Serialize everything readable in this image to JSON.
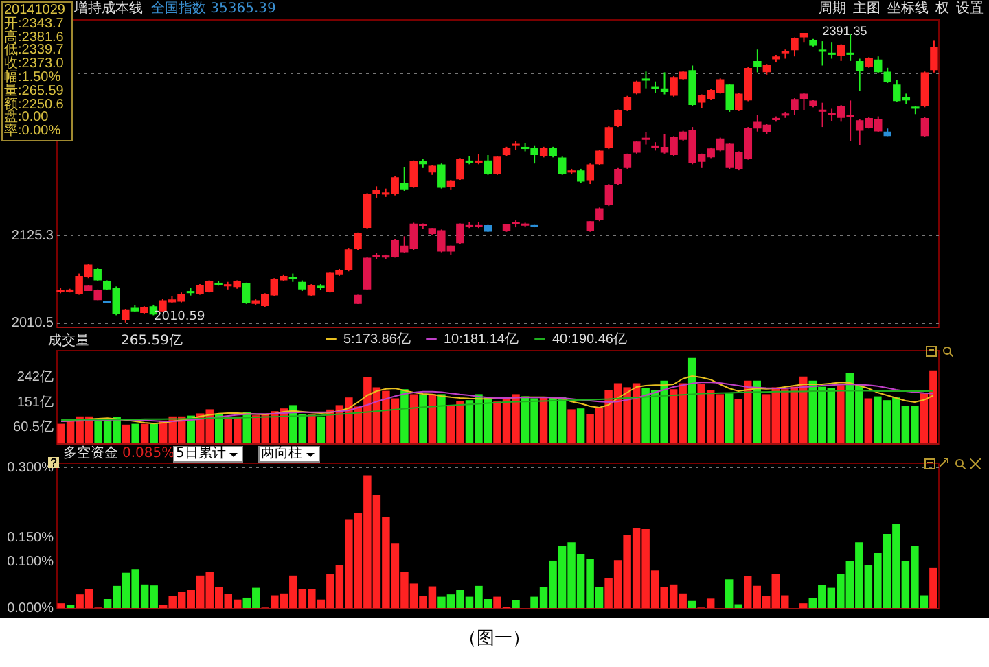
{
  "chart_data": [
    {
      "type": "candlestick",
      "title": "增持成本线",
      "annotations": [
        "全国指数 35365.39",
        "20141029",
        "开:2343.7",
        "高:2381.6",
        "低:2339.7",
        "收:2373.0",
        "幅:1.50%",
        "量:265.59",
        "额:2250.6",
        "盘:0.00",
        "率:0.00%",
        "周期",
        "主图",
        "坐标线",
        "权",
        "设置",
        {
          "text": "2391.35",
          "y": 2391.35
        },
        "2010.59"
      ],
      "categories": [
        null,
        null,
        null,
        null,
        null,
        null,
        null,
        null,
        null,
        null,
        null,
        null,
        null,
        null,
        null,
        null,
        null,
        null,
        null,
        null,
        null,
        null,
        null,
        null,
        null,
        null,
        null,
        null,
        null,
        null,
        null,
        null,
        null,
        null,
        null,
        null,
        null,
        null,
        null,
        null,
        null,
        null,
        null,
        null,
        null,
        null,
        null,
        null,
        null,
        null,
        null,
        null,
        null,
        null,
        null,
        null,
        null,
        null,
        null,
        null,
        null,
        null,
        null,
        null,
        null,
        null,
        null,
        null,
        null,
        null,
        null,
        null,
        null,
        null,
        null,
        null,
        null,
        null,
        null,
        null,
        null,
        null,
        null,
        null,
        null,
        null,
        null,
        null,
        null,
        null,
        null,
        null,
        null,
        null,
        null
      ],
      "series": [
        {
          "ohlc": [
            [
              2052,
              2056,
              2049,
              2053
            ],
            [
              2052,
              2055,
              2050,
              2053
            ],
            [
              2049,
              2075,
              2047,
              2071
            ],
            [
              2071,
              2088,
              2069,
              2086
            ],
            [
              2080,
              2082,
              2065,
              2067
            ],
            [
              2064,
              2066,
              2053,
              2055
            ],
            [
              2055,
              2058,
              2020,
              2023
            ],
            [
              2014,
              2028,
              2010.59,
              2026
            ],
            [
              2029,
              2033,
              2024,
              2026
            ],
            [
              2024,
              2032,
              2022,
              2030
            ],
            [
              2031,
              2034,
              2020,
              2022
            ],
            [
              2026,
              2042,
              2024,
              2039
            ],
            [
              2038,
              2045,
              2036,
              2040
            ],
            [
              2039,
              2050,
              2037,
              2047
            ],
            [
              2051,
              2056,
              2046,
              2050
            ],
            [
              2049,
              2061,
              2047,
              2059
            ],
            [
              2052,
              2066,
              2050,
              2064
            ],
            [
              2062,
              2065,
              2059,
              2061
            ],
            [
              2059,
              2064,
              2054,
              2060
            ],
            [
              2058,
              2066,
              2055,
              2064
            ],
            [
              2061,
              2063,
              2035,
              2037
            ],
            [
              2036,
              2041,
              2034,
              2039
            ],
            [
              2033,
              2049,
              2031,
              2047
            ],
            [
              2047,
              2069,
              2045,
              2067
            ],
            [
              2067,
              2073,
              2065,
              2071
            ],
            [
              2070,
              2075,
              2064,
              2069
            ],
            [
              2063,
              2066,
              2052,
              2055
            ],
            [
              2047,
              2061,
              2045,
              2059
            ],
            [
              2058,
              2061,
              2053,
              2057
            ],
            [
              2052,
              2077,
              2050,
              2075
            ],
            [
              2074,
              2081,
              2072,
              2079
            ],
            [
              2080,
              2108,
              2078,
              2106
            ],
            [
              2108,
              2129,
              2106,
              2127
            ],
            [
              2136,
              2181,
              2134,
              2179
            ],
            [
              2181,
              2190,
              2175,
              2184
            ],
            [
              2180,
              2187,
              2176,
              2181
            ],
            [
              2181,
              2203,
              2178,
              2201
            ],
            [
              2194,
              2215,
              2184,
              2186
            ],
            [
              2190,
              2224,
              2188,
              2222
            ],
            [
              2222,
              2226,
              2214,
              2220
            ],
            [
              2209,
              2218,
              2205,
              2216
            ],
            [
              2218,
              2220,
              2187,
              2189
            ],
            [
              2190,
              2198,
              2185,
              2196
            ],
            [
              2200,
              2227,
              2198,
              2225
            ],
            [
              2223,
              2230,
              2219,
              2222
            ],
            [
              2222,
              2232,
              2219,
              2223
            ],
            [
              2223,
              2231,
              2205,
              2207
            ],
            [
              2207,
              2230,
              2205,
              2228
            ],
            [
              2232,
              2242,
              2230,
              2240
            ],
            [
              2244,
              2250,
              2238,
              2245
            ],
            [
              2241,
              2247,
              2236,
              2240
            ],
            [
              2240,
              2243,
              2220,
              2232
            ],
            [
              2230,
              2242,
              2228,
              2240
            ],
            [
              2240,
              2242,
              2228,
              2230
            ],
            [
              2227,
              2229,
              2205,
              2207
            ],
            [
              2209,
              2213,
              2206,
              2210
            ],
            [
              2210,
              2213,
              2194,
              2197
            ],
            [
              2198,
              2220,
              2193,
              2218
            ],
            [
              2220,
              2238,
              2218,
              2236
            ],
            [
              2241,
              2269,
              2239,
              2267
            ],
            [
              2270,
              2291,
              2268,
              2289
            ],
            [
              2291,
              2309,
              2289,
              2307
            ],
            [
              2313,
              2329,
              2311,
              2327
            ],
            [
              2331,
              2341,
              2319,
              2330
            ],
            [
              2320,
              2328,
              2313,
              2319
            ],
            [
              2318,
              2340,
              2311,
              2315
            ],
            [
              2310,
              2335,
              2308,
              2333
            ],
            [
              2332,
              2342,
              2330,
              2340
            ],
            [
              2342,
              2349,
              2296,
              2298
            ],
            [
              2301,
              2311,
              2293,
              2309
            ],
            [
              2306,
              2318,
              2304,
              2316
            ],
            [
              2314,
              2332,
              2312,
              2330
            ],
            [
              2323,
              2325,
              2288,
              2291
            ],
            [
              2291,
              2313,
              2289,
              2311
            ],
            [
              2304,
              2347,
              2302,
              2345
            ],
            [
              2354,
              2370,
              2340,
              2348
            ],
            [
              2341,
              2351,
              2337,
              2349
            ],
            [
              2358,
              2363,
              2353,
              2360
            ],
            [
              2366,
              2370,
              2358,
              2367
            ],
            [
              2370,
              2386,
              2361,
              2384
            ],
            [
              2387,
              2391.35,
              2380,
              2391
            ],
            [
              2382,
              2384,
              2374,
              2376
            ],
            [
              2369,
              2381,
              2349,
              2368
            ],
            [
              2365,
              2380,
              2358,
              2364
            ],
            [
              2362,
              2377,
              2355,
              2375
            ],
            [
              2365,
              2390,
              2355,
              2364
            ],
            [
              2354,
              2358,
              2316,
              2343
            ],
            [
              2348,
              2360,
              2346,
              2358
            ],
            [
              2356,
              2361,
              2339,
              2341
            ],
            [
              2340,
              2346,
              2326,
              2328
            ],
            [
              2323,
              2330,
              2301,
              2303
            ],
            [
              2306,
              2312,
              2298,
              2304
            ],
            [
              2294,
              2296,
              2285,
              2293
            ],
            [
              2296,
              2341,
              2294,
              2339
            ],
            [
              2343.7,
              2381.6,
              2339.7,
              2373.0
            ]
          ],
          "colors": [
            "#ff2222",
            "#ff2222",
            "#ff2222",
            "#ff2222",
            "#22ee22",
            "#22ee22",
            "#22ee22",
            "#ff2222",
            "#22ee22",
            "#ff2222",
            "#22ee22",
            "#ff2222",
            "#ff2222",
            "#ff2222",
            "#22ee22",
            "#ff2222",
            "#ff2222",
            "#22ee22",
            "#ff2222",
            "#ff2222",
            "#22ee22",
            "#ff2222",
            "#ff2222",
            "#ff2222",
            "#ff2222",
            "#22ee22",
            "#22ee22",
            "#ff2222",
            "#22ee22",
            "#ff2222",
            "#ff2222",
            "#ff2222",
            "#ff2222",
            "#ff2222",
            "#ff2222",
            "#ff2222",
            "#ff2222",
            "#22ee22",
            "#ff2222",
            "#22ee22",
            "#ff2222",
            "#22ee22",
            "#ff2222",
            "#ff2222",
            "#22ee22",
            "#ff2222",
            "#22ee22",
            "#ff2222",
            "#ff2222",
            "#ff2222",
            "#22ee22",
            "#22ee22",
            "#ff2222",
            "#22ee22",
            "#22ee22",
            "#ff2222",
            "#22ee22",
            "#ff2222",
            "#ff2222",
            "#ff2222",
            "#ff2222",
            "#ff2222",
            "#ff2222",
            "#22ee22",
            "#22ee22",
            "#22ee22",
            "#ff2222",
            "#ff2222",
            "#22ee22",
            "#ff2222",
            "#ff2222",
            "#ff2222",
            "#22ee22",
            "#ff2222",
            "#ff2222",
            "#22ee22",
            "#ff2222",
            "#ff2222",
            "#ff2222",
            "#ff2222",
            "#ff2222",
            "#22ee22",
            "#22ee22",
            "#22ee22",
            "#ff2222",
            "#22ee22",
            "#22ee22",
            "#ff2222",
            "#22ee22",
            "#22ee22",
            "#22ee22",
            "#22ee22",
            "#22ee22",
            "#ff2222",
            "#ff2222"
          ]
        },
        {
          "ohlc": [
            null,
            null,
            null,
            [
              2053,
              2060,
              2052,
              2058
            ],
            [
              2041,
              2054,
              2040,
              2053
            ],
            [
              2038,
              2039,
              2036,
              2037
            ],
            null,
            null,
            null,
            null,
            null,
            null,
            null,
            null,
            null,
            null,
            null,
            null,
            null,
            null,
            null,
            null,
            null,
            null,
            null,
            null,
            null,
            null,
            null,
            null,
            null,
            null,
            [
              2036,
              2047,
              2035,
              2046
            ],
            [
              2055,
              2097,
              2053,
              2095
            ],
            [
              2098,
              2102,
              2094,
              2099
            ],
            [
              2097,
              2100,
              2094,
              2098
            ],
            [
              2098,
              2120,
              2096,
              2118
            ],
            [
              2104,
              2124,
              2102,
              2111
            ],
            [
              2108,
              2142,
              2106,
              2140
            ],
            [
              2138,
              2141,
              2134,
              2139
            ],
            [
              2128,
              2135,
              2126,
              2134
            ],
            [
              2105,
              2133,
              2103,
              2131
            ],
            [
              2105,
              2112,
              2100,
              2111
            ],
            [
              2116,
              2141,
              2114,
              2140
            ],
            [
              2137,
              2143,
              2135,
              2138
            ],
            [
              2137,
              2143,
              2135,
              2138
            ],
            [
              2138,
              2139,
              2130,
              2131
            ],
            null,
            [
              2132,
              2140,
              2130,
              2139
            ],
            [
              2141,
              2145,
              2136,
              2142
            ],
            [
              2139,
              2142,
              2136,
              2140
            ],
            [
              2138,
              2139,
              2136,
              2137
            ],
            null,
            null,
            null,
            null,
            null,
            [
              2132,
              2144,
              2130,
              2143
            ],
            [
              2146,
              2162,
              2144,
              2160
            ],
            [
              2166,
              2193,
              2164,
              2191
            ],
            [
              2194,
              2214,
              2192,
              2212
            ],
            [
              2215,
              2233,
              2213,
              2231
            ],
            [
              2235,
              2250,
              2233,
              2248
            ],
            [
              2252,
              2261,
              2245,
              2253
            ],
            [
              2241,
              2248,
              2237,
              2242
            ],
            [
              2235,
              2259,
              2233,
              2241
            ],
            [
              2232,
              2256,
              2230,
              2254
            ],
            [
              2252,
              2263,
              2250,
              2261
            ],
            [
              2221,
              2268,
              2219,
              2263
            ],
            [
              2223,
              2233,
              2214,
              2231
            ],
            [
              2229,
              2241,
              2227,
              2239
            ],
            [
              2238,
              2254,
              2236,
              2252
            ],
            [
              2215,
              2247,
              2212,
              2245
            ],
            [
              2213,
              2236,
              2211,
              2234
            ],
            [
              2227,
              2268,
              2225,
              2266
            ],
            [
              2267,
              2284,
              2262,
              2274
            ],
            [
              2262,
              2272,
              2259,
              2270
            ],
            [
              2278,
              2282,
              2275,
              2279
            ],
            [
              2284,
              2288,
              2280,
              2285
            ],
            [
              2291,
              2306,
              2284,
              2304
            ],
            [
              2306,
              2313,
              2290,
              2311
            ],
            [
              2297,
              2304,
              2294,
              2302
            ],
            [
              2289,
              2300,
              2268,
              2290
            ],
            [
              2285,
              2292,
              2276,
              2286
            ],
            [
              2281,
              2297,
              2275,
              2295
            ],
            [
              2282,
              2303,
              2250,
              2283
            ],
            [
              2264,
              2278,
              2244,
              2276
            ],
            [
              2268,
              2281,
              2266,
              2279
            ],
            [
              2263,
              2282,
              2261,
              2277
            ],
            [
              2261,
              2266,
              2256,
              2257
            ],
            null,
            null,
            null,
            [
              2257,
              2281,
              2255,
              2279
            ],
            null
          ],
          "colors": [
            null,
            null,
            null,
            "#e0144c",
            "#e0144c",
            "#2a8fd8",
            null,
            null,
            null,
            null,
            null,
            null,
            null,
            null,
            null,
            null,
            null,
            null,
            null,
            null,
            null,
            null,
            null,
            null,
            null,
            null,
            null,
            null,
            null,
            null,
            null,
            null,
            "#e0144c",
            "#e0144c",
            "#e0144c",
            "#e0144c",
            "#e0144c",
            "#e0144c",
            "#e0144c",
            "#e0144c",
            "#e0144c",
            "#e0144c",
            "#e0144c",
            "#e0144c",
            "#e0144c",
            "#e0144c",
            "#2a8fd8",
            null,
            "#e0144c",
            "#e0144c",
            "#e0144c",
            "#2a8fd8",
            null,
            null,
            null,
            null,
            null,
            "#e0144c",
            "#e0144c",
            "#e0144c",
            "#e0144c",
            "#e0144c",
            "#e0144c",
            "#e0144c",
            "#e0144c",
            "#e0144c",
            "#e0144c",
            "#e0144c",
            "#e0144c",
            "#e0144c",
            "#e0144c",
            "#e0144c",
            "#e0144c",
            "#e0144c",
            "#e0144c",
            "#e0144c",
            "#e0144c",
            "#e0144c",
            "#e0144c",
            "#e0144c",
            "#e0144c",
            "#e0144c",
            "#e0144c",
            "#e0144c",
            "#e0144c",
            "#e0144c",
            "#e0144c",
            "#e0144c",
            "#e0144c",
            "#2a8fd8",
            null,
            null,
            null,
            "#e0144c",
            null
          ]
        }
      ],
      "ylim": [
        2005,
        2410
      ],
      "yticks": [
        2010.5,
        2125.3,
        {
          "value": 2339,
          "label": null
        }
      ],
      "grid": "y",
      "tick_labels": "y"
    },
    {
      "type": "bar",
      "title": "成交量",
      "annotations": [
        "265.59亿"
      ],
      "categories": [
        null,
        null,
        null,
        null,
        null,
        null,
        null,
        null,
        null,
        null,
        null,
        null,
        null,
        null,
        null,
        null,
        null,
        null,
        null,
        null,
        null,
        null,
        null,
        null,
        null,
        null,
        null,
        null,
        null,
        null,
        null,
        null,
        null,
        null,
        null,
        null,
        null,
        null,
        null,
        null,
        null,
        null,
        null,
        null,
        null,
        null,
        null,
        null,
        null,
        null,
        null,
        null,
        null,
        null,
        null,
        null,
        null,
        null,
        null,
        null,
        null,
        null,
        null,
        null,
        null,
        null,
        null,
        null,
        null,
        null,
        null,
        null,
        null,
        null,
        null,
        null,
        null,
        null,
        null,
        null,
        null,
        null,
        null,
        null,
        null,
        null,
        null,
        null,
        null,
        null,
        null,
        null,
        null,
        null,
        null
      ],
      "series": [
        {
          "values": [
            71,
            80,
            98,
            98,
            87,
            90,
            95,
            68,
            71,
            71,
            71,
            83,
            98,
            98,
            101,
            109,
            124,
            108,
            98,
            98,
            115,
            102,
            105,
            117,
            127,
            139,
            105,
            105,
            98,
            123,
            139,
            167,
            134,
            241,
            204,
            191,
            164,
            197,
            179,
            179,
            179,
            179,
            137,
            154,
            157,
            179,
            169,
            152,
            164,
            179,
            171,
            164,
            169,
            169,
            169,
            124,
            127,
            105,
            130,
            194,
            219,
            204,
            219,
            201,
            194,
            228,
            197,
            219,
            313,
            216,
            194,
            179,
            182,
            160,
            228,
            228,
            179,
            204,
            197,
            206,
            243,
            228,
            206,
            201,
            212,
            256,
            216,
            164,
            171,
            157,
            167,
            135,
            135,
            182,
            265.59
          ],
          "colors": [
            "#ff2222",
            "#ff2222",
            "#ff2222",
            "#ff2222",
            "#22ee22",
            "#22ee22",
            "#22ee22",
            "#ff2222",
            "#22ee22",
            "#ff2222",
            "#22ee22",
            "#ff2222",
            "#ff2222",
            "#ff2222",
            "#22ee22",
            "#ff2222",
            "#ff2222",
            "#22ee22",
            "#ff2222",
            "#ff2222",
            "#22ee22",
            "#ff2222",
            "#ff2222",
            "#ff2222",
            "#ff2222",
            "#22ee22",
            "#22ee22",
            "#ff2222",
            "#22ee22",
            "#ff2222",
            "#ff2222",
            "#ff2222",
            "#ff2222",
            "#ff2222",
            "#ff2222",
            "#ff2222",
            "#ff2222",
            "#22ee22",
            "#ff2222",
            "#22ee22",
            "#ff2222",
            "#22ee22",
            "#ff2222",
            "#ff2222",
            "#22ee22",
            "#22ee22",
            "#22ee22",
            "#ff2222",
            "#ff2222",
            "#ff2222",
            "#22ee22",
            "#22ee22",
            "#ff2222",
            "#22ee22",
            "#22ee22",
            "#ff2222",
            "#22ee22",
            "#ff2222",
            "#ff2222",
            "#ff2222",
            "#ff2222",
            "#ff2222",
            "#ff2222",
            "#22ee22",
            "#22ee22",
            "#22ee22",
            "#ff2222",
            "#ff2222",
            "#22ee22",
            "#ff2222",
            "#ff2222",
            "#ff2222",
            "#22ee22",
            "#ff2222",
            "#ff2222",
            "#22ee22",
            "#ff2222",
            "#ff2222",
            "#ff2222",
            "#ff2222",
            "#ff2222",
            "#22ee22",
            "#22ee22",
            "#22ee22",
            "#ff2222",
            "#22ee22",
            "#22ee22",
            "#ff2222",
            "#22ee22",
            "#22ee22",
            "#22ee22",
            "#22ee22",
            "#22ee22",
            "#ff2222",
            "#ff2222"
          ]
        },
        {
          "type": "line",
          "name": "5:173.86亿",
          "color": "#e8c020",
          "values": [
            80,
            82,
            85,
            88,
            90,
            92,
            88,
            85,
            80,
            75,
            72,
            75,
            80,
            85,
            90,
            98,
            104,
            108,
            110,
            110,
            108,
            106,
            105,
            108,
            115,
            118,
            115,
            112,
            110,
            112,
            118,
            128,
            150,
            175,
            190,
            198,
            200,
            192,
            185,
            180,
            178,
            172,
            168,
            165,
            163,
            162,
            162,
            163,
            165,
            167,
            168,
            168,
            168,
            167,
            162,
            152,
            145,
            135,
            130,
            140,
            165,
            185,
            205,
            210,
            212,
            212,
            215,
            235,
            245,
            240,
            232,
            215,
            200,
            190,
            195,
            200,
            198,
            200,
            205,
            210,
            215,
            215,
            215,
            218,
            222,
            220,
            210,
            200,
            185,
            175,
            165,
            155,
            150,
            158,
            173.86
          ]
        },
        {
          "type": "line",
          "name": "10:181.14亿",
          "color": "#c040c8",
          "values": [
            80,
            81,
            82,
            83,
            84,
            85,
            86,
            86,
            85,
            84,
            82,
            80,
            80,
            82,
            85,
            88,
            92,
            96,
            100,
            104,
            106,
            107,
            107,
            108,
            110,
            112,
            113,
            113,
            113,
            114,
            116,
            120,
            130,
            140,
            152,
            162,
            172,
            180,
            185,
            188,
            188,
            186,
            182,
            178,
            175,
            170,
            167,
            165,
            165,
            166,
            167,
            167,
            167,
            166,
            165,
            162,
            158,
            155,
            152,
            150,
            152,
            158,
            165,
            175,
            185,
            195,
            205,
            212,
            218,
            222,
            222,
            220,
            215,
            210,
            205,
            203,
            201,
            200,
            200,
            202,
            205,
            207,
            210,
            212,
            214,
            215,
            214,
            212,
            208,
            202,
            195,
            190,
            186,
            183,
            181.14
          ]
        },
        {
          "type": "line",
          "name": "40:190.46亿",
          "color": "#20b020",
          "values": [
            85,
            85,
            86,
            86,
            86,
            87,
            87,
            87,
            87,
            88,
            88,
            88,
            89,
            89,
            90,
            90,
            91,
            92,
            92,
            93,
            94,
            95,
            96,
            97,
            98,
            99,
            100,
            101,
            102,
            104,
            106,
            108,
            111,
            114,
            117,
            120,
            123,
            126,
            129,
            132,
            134,
            136,
            138,
            140,
            142,
            144,
            146,
            148,
            150,
            151,
            152,
            153,
            154,
            155,
            156,
            157,
            158,
            159,
            160,
            161,
            163,
            165,
            167,
            169,
            171,
            173,
            175,
            177,
            179,
            181,
            182,
            183,
            184,
            185,
            186,
            187,
            187,
            188,
            188,
            189,
            189,
            190,
            190,
            190,
            191,
            191,
            191,
            191,
            190,
            190,
            190,
            190,
            190,
            190,
            190.46
          ]
        }
      ],
      "ylim": [
        0,
        340
      ],
      "yticks": [
        {
          "value": 60.5,
          "label": "60.5亿"
        },
        {
          "value": 151,
          "label": "151亿"
        },
        {
          "value": 242,
          "label": "242亿"
        }
      ],
      "legend": "top",
      "tick_labels": "y"
    },
    {
      "type": "bar",
      "title": "多空资金",
      "annotations": [
        "0.085%",
        "5日累计",
        "两向柱",
        "（图一）"
      ],
      "categories": [
        null,
        null,
        null,
        null,
        null,
        null,
        null,
        null,
        null,
        null,
        null,
        null,
        null,
        null,
        null,
        null,
        null,
        null,
        null,
        null,
        null,
        null,
        null,
        null,
        null,
        null,
        null,
        null,
        null,
        null,
        null,
        null,
        null,
        null,
        null,
        null,
        null,
        null,
        null,
        null,
        null,
        null,
        null,
        null,
        null,
        null,
        null,
        null,
        null,
        null,
        null,
        null,
        null,
        null,
        null,
        null,
        null,
        null,
        null,
        null,
        null,
        null,
        null,
        null,
        null,
        null,
        null,
        null,
        null,
        null,
        null,
        null,
        null,
        null,
        null,
        null,
        null,
        null,
        null,
        null,
        null,
        null,
        null,
        null,
        null,
        null,
        null,
        null,
        null,
        null,
        null,
        null,
        null,
        null,
        null
      ],
      "values": [
        0.01,
        0.007,
        0.029,
        0.04,
        0.001,
        0.019,
        0.047,
        0.075,
        0.083,
        0.05,
        0.048,
        0.007,
        0.026,
        0.035,
        0.038,
        0.069,
        0.076,
        0.044,
        0.03,
        0.018,
        0.022,
        0.043,
        0.001,
        0.027,
        0.031,
        0.069,
        0.04,
        0.04,
        0.018,
        0.072,
        0.092,
        0.188,
        0.203,
        0.283,
        0.24,
        0.193,
        0.137,
        0.077,
        0.052,
        0.026,
        0.046,
        0.024,
        0.029,
        0.038,
        0.024,
        0.047,
        0.019,
        0.024,
        0.002,
        0.017,
        0,
        0.024,
        0.045,
        0.101,
        0.132,
        0.14,
        0.114,
        0.104,
        0.044,
        0.063,
        0.102,
        0.156,
        0.171,
        0.168,
        0.08,
        0.044,
        0.05,
        0.031,
        0.015,
        0.001,
        0.02,
        0,
        0.061,
        0.008,
        0.068,
        0.047,
        0.026,
        0.073,
        0.027,
        0,
        0.01,
        0.021,
        0.049,
        0.043,
        0.072,
        0.101,
        0.14,
        0.091,
        0.117,
        0.158,
        0.18,
        0.101,
        0.133,
        0.027,
        0.085
      ],
      "colors": [
        "#ff2222",
        "#22ee22",
        "#ff2222",
        "#ff2222",
        "#ff2222",
        "#22ee22",
        "#22ee22",
        "#22ee22",
        "#22ee22",
        "#22ee22",
        "#22ee22",
        "#ff2222",
        "#ff2222",
        "#ff2222",
        "#ff2222",
        "#ff2222",
        "#ff2222",
        "#ff2222",
        "#ff2222",
        "#ff2222",
        "#22ee22",
        "#22ee22",
        "#ff2222",
        "#ff2222",
        "#ff2222",
        "#ff2222",
        "#ff2222",
        "#ff2222",
        "#ff2222",
        "#ff2222",
        "#ff2222",
        "#ff2222",
        "#ff2222",
        "#ff2222",
        "#ff2222",
        "#ff2222",
        "#ff2222",
        "#ff2222",
        "#ff2222",
        "#ff2222",
        "#ff2222",
        "#22ee22",
        "#22ee22",
        "#22ee22",
        "#22ee22",
        "#22ee22",
        "#22ee22",
        "#ff2222",
        "#ff2222",
        "#22ee22",
        "#ff2222",
        "#22ee22",
        "#22ee22",
        "#22ee22",
        "#22ee22",
        "#22ee22",
        "#22ee22",
        "#22ee22",
        "#22ee22",
        "#ff2222",
        "#ff2222",
        "#ff2222",
        "#ff2222",
        "#ff2222",
        "#ff2222",
        "#ff2222",
        "#ff2222",
        "#ff2222",
        "#22ee22",
        "#ff2222",
        "#ff2222",
        "#ff2222",
        "#22ee22",
        "#22ee22",
        "#ff2222",
        "#ff2222",
        "#ff2222",
        "#ff2222",
        "#ff2222",
        "#ff2222",
        "#ff2222",
        "#22ee22",
        "#22ee22",
        "#22ee22",
        "#22ee22",
        "#22ee22",
        "#22ee22",
        "#22ee22",
        "#22ee22",
        "#22ee22",
        "#22ee22",
        "#22ee22",
        "#22ee22",
        "#22ee22",
        "#ff2222"
      ],
      "ylim": [
        0,
        0.31
      ],
      "yticks": [
        {
          "value": 0,
          "label": "0.000%"
        },
        {
          "value": 0.1,
          "label": "0.100%"
        },
        {
          "value": 0.15,
          "label": "0.150%"
        },
        {
          "value": 0.3,
          "label": "0.300%"
        }
      ],
      "grid": "y",
      "tick_labels": "y"
    }
  ]
}
